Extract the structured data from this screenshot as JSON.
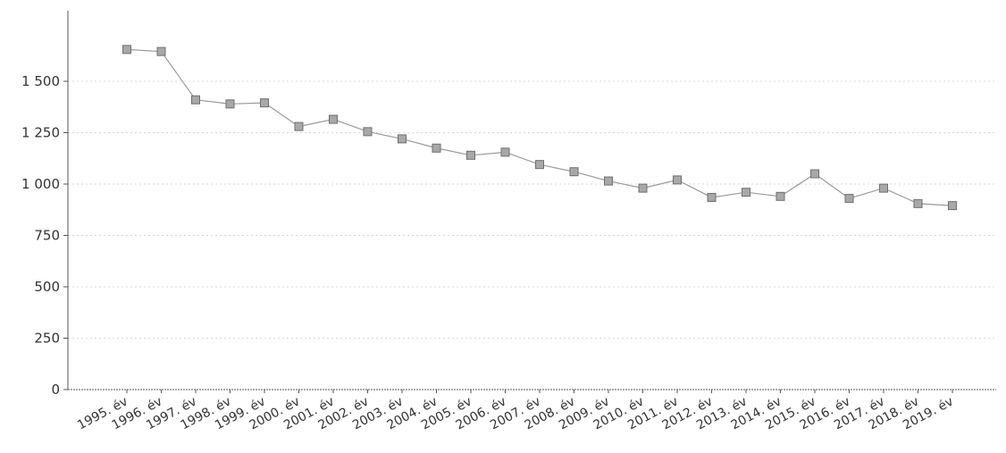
{
  "chart_data": {
    "type": "line",
    "title": "",
    "xlabel": "",
    "ylabel": "",
    "categories": [
      "1995. év",
      "1996. év",
      "1997. év",
      "1998. év",
      "1999. év",
      "2000. év",
      "2001. év",
      "2002. év",
      "2003. év",
      "2004. év",
      "2005. év",
      "2006. év",
      "2007. év",
      "2008. év",
      "2009. év",
      "2010. év",
      "2011. év",
      "2012. év",
      "2013. év",
      "2014. év",
      "2015. év",
      "2016. év",
      "2017. év",
      "2018. év",
      "2019. év"
    ],
    "values": [
      1655,
      1645,
      1410,
      1390,
      1395,
      1280,
      1315,
      1255,
      1220,
      1175,
      1140,
      1155,
      1095,
      1060,
      1015,
      980,
      1020,
      935,
      960,
      940,
      1050,
      930,
      980,
      905,
      895
    ],
    "yticks": [
      0,
      250,
      500,
      750,
      1000,
      1250,
      1500
    ],
    "ytick_labels": [
      "0",
      "250",
      "500",
      "750",
      "1 000",
      "1 250",
      "1 500"
    ],
    "ylim": [
      0,
      1700
    ],
    "grid": true,
    "legend": "none",
    "colors": {
      "line": "#9a9a9a",
      "marker": "#a8a8a8",
      "marker_stroke": "#6f6f6f",
      "grid": "#d8d8d8",
      "axis": "#555555"
    }
  }
}
